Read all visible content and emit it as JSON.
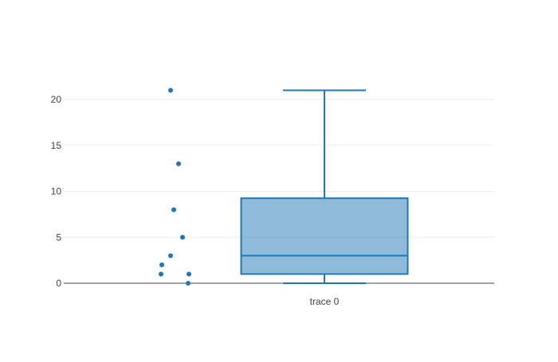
{
  "chart_data": {
    "type": "box",
    "title": "",
    "xlabel": "",
    "ylabel": "",
    "ylim": [
      0,
      22
    ],
    "yticks": [
      0,
      5,
      10,
      15,
      20
    ],
    "grid": true,
    "color": "#1f77b4",
    "boxpoints": "all",
    "series": [
      {
        "name": "trace 0",
        "points": [
          0,
          1,
          1,
          2,
          3,
          5,
          8,
          13,
          21
        ],
        "min": 0,
        "q1": 1,
        "median": 3,
        "q3": 9.25,
        "max": 21
      }
    ]
  }
}
